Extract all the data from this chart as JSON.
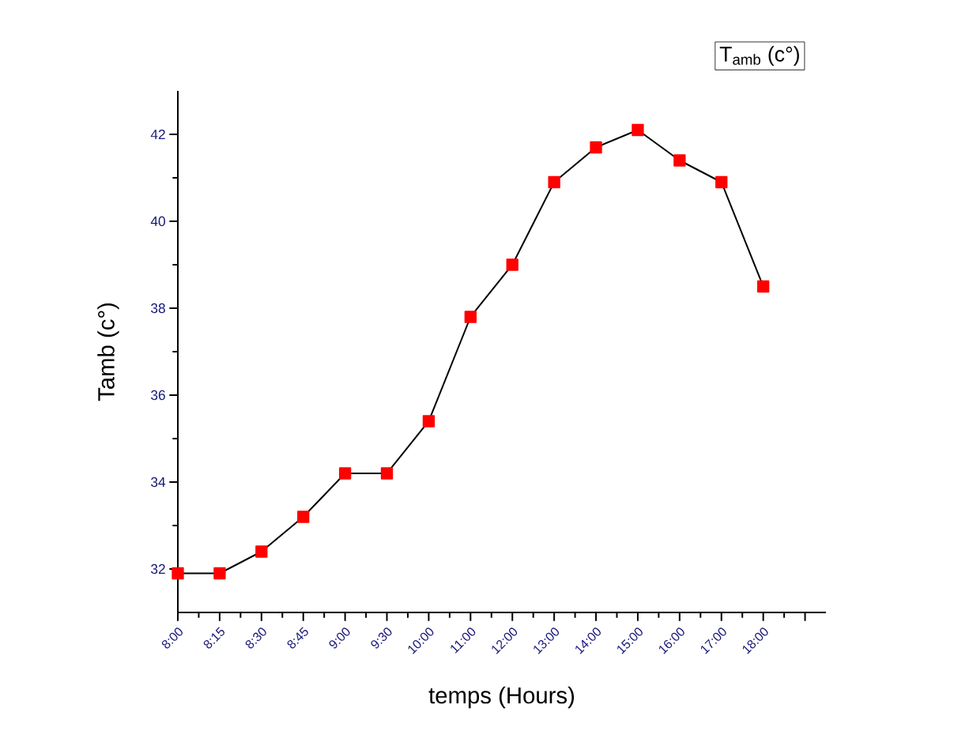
{
  "chart_data": {
    "type": "line",
    "xlabel": "temps (Hours)",
    "ylabel": "Tamb (c°)",
    "annotations": [
      "T$_{amb}$ (c°)"
    ],
    "categories": [
      "8:00",
      "8:15",
      "8:30",
      "8:45",
      "9:00",
      "9:30",
      "10:00",
      "11:00",
      "12:00",
      "13:00",
      "14:00",
      "15:00",
      "16:00",
      "17:00",
      "18:00",
      null
    ],
    "series": [
      {
        "color": "#ff0000",
        "values": [
          31.9,
          31.9,
          32.4,
          33.2,
          34.2,
          34.2,
          35.4,
          37.8,
          39.0,
          40.9,
          41.7,
          42.1,
          41.4,
          40.9,
          38.5,
          null
        ]
      }
    ],
    "ylim": [
      31,
      43
    ],
    "yticks": [
      32,
      34,
      36,
      38,
      40,
      42
    ],
    "marker": "square",
    "line_style": "solid"
  }
}
